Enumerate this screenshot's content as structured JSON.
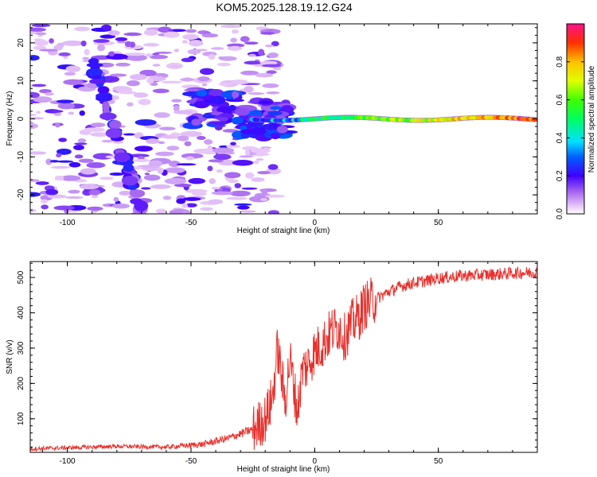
{
  "figure": {
    "title": "KOM5.2025.128.19.12.G24"
  },
  "chart_data": [
    {
      "type": "heatmap",
      "panel": "spectrogram",
      "xlabel": "Height of straight line (km)",
      "ylabel": "Frequency (Hz)",
      "xlim": [
        -115,
        90
      ],
      "ylim": [
        -25,
        25
      ],
      "x_ticks": [
        -100,
        -50,
        0,
        50
      ],
      "y_ticks": [
        -20,
        -10,
        0,
        10,
        20
      ],
      "colorbar": {
        "label": "Normalized spectral amplitude",
        "range": [
          0,
          1
        ],
        "ticks": [
          0.0,
          0.2,
          0.4,
          0.6,
          0.8
        ],
        "tick_labels": [
          "0.0",
          "0.2",
          "0.4",
          "0.6",
          "0.8"
        ],
        "colormap": "rainbow (white/pink low → purple → blue → cyan → green → yellow → red high)"
      },
      "features": [
        {
          "name": "main tone",
          "x_range": [
            -25,
            90
          ],
          "frequency_hz": [
            -0.5,
            0.5
          ],
          "amplitude": 0.9
        },
        {
          "name": "scattered noise",
          "x_range": [
            -115,
            -20
          ],
          "frequency_hz": [
            -25,
            25
          ],
          "amplitude": 0.2
        }
      ]
    },
    {
      "type": "line",
      "panel": "snr",
      "xlabel": "Height of straight line (km)",
      "ylabel": "SNR (v/v)",
      "xlim": [
        -115,
        90
      ],
      "ylim": [
        5,
        545
      ],
      "x_ticks": [
        -100,
        -50,
        0,
        50
      ],
      "y_ticks": [
        100,
        200,
        300,
        400,
        500
      ],
      "color": "#e8302c",
      "series": [
        {
          "x": [
            -115,
            -100,
            -80,
            -60,
            -45,
            -35,
            -25,
            -20,
            -17,
            -15,
            -12,
            -10,
            -7,
            -5,
            -3,
            0,
            3,
            5,
            7,
            10,
            12,
            15,
            18,
            20,
            25,
            30,
            35,
            40,
            45,
            50,
            60,
            70,
            80,
            90
          ],
          "values": [
            15,
            18,
            22,
            20,
            28,
            45,
            70,
            100,
            160,
            300,
            150,
            270,
            120,
            240,
            250,
            290,
            310,
            330,
            350,
            360,
            330,
            370,
            390,
            420,
            440,
            460,
            475,
            485,
            490,
            498,
            505,
            508,
            512,
            515
          ]
        }
      ]
    }
  ]
}
